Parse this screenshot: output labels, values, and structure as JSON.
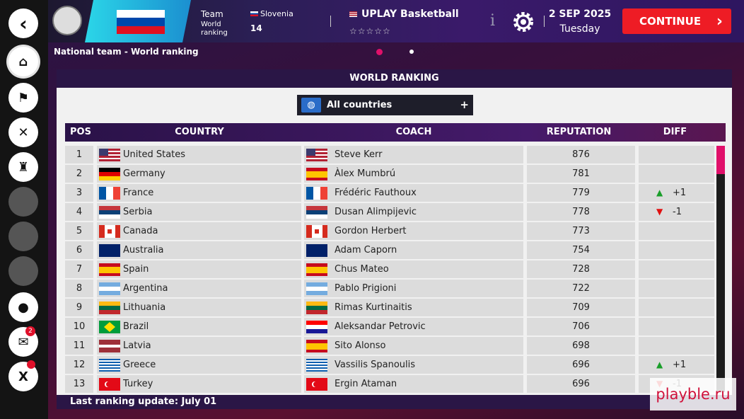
{
  "header": {
    "team_label": "Team",
    "world_ranking_label": "World ranking",
    "team_country": "Slovenia",
    "team_rank": 14,
    "game_title": "UPLAY Basketball",
    "date": "2 SEP 2025",
    "weekday": "Tuesday",
    "continue": "CONTINUE"
  },
  "breadcrumb": "National team - World ranking",
  "panel": {
    "title": "WORLD RANKING",
    "filter": "All countries"
  },
  "table": {
    "columns": [
      "POS",
      "COUNTRY",
      "COACH",
      "REPUTATION",
      "DIFF"
    ],
    "rows": [
      {
        "pos": 1,
        "country": "United States",
        "coach": "Steve Kerr",
        "reputation": 876
      },
      {
        "pos": 2,
        "country": "Germany",
        "coach": "Àlex Mumbrú",
        "reputation": 781
      },
      {
        "pos": 3,
        "country": "France",
        "coach": "Frédéric Fauthoux",
        "reputation": 779,
        "diff": "+1"
      },
      {
        "pos": 4,
        "country": "Serbia",
        "coach": "Dusan Alimpijevic",
        "reputation": 778,
        "diff": "-1"
      },
      {
        "pos": 5,
        "country": "Canada",
        "coach": "Gordon Herbert",
        "reputation": 773
      },
      {
        "pos": 6,
        "country": "Australia",
        "coach": "Adam Caporn",
        "reputation": 754
      },
      {
        "pos": 7,
        "country": "Spain",
        "coach": "Chus Mateo",
        "reputation": 728
      },
      {
        "pos": 8,
        "country": "Argentina",
        "coach": "Pablo Prigioni",
        "reputation": 722
      },
      {
        "pos": 9,
        "country": "Lithuania",
        "coach": "Rimas Kurtinaitis",
        "reputation": 709
      },
      {
        "pos": 10,
        "country": "Brazil",
        "coach": "Aleksandar Petrovic",
        "reputation": 706
      },
      {
        "pos": 11,
        "country": "Latvia",
        "coach": "Sito Alonso",
        "reputation": 698
      },
      {
        "pos": 12,
        "country": "Greece",
        "coach": "Vassilis Spanoulis",
        "reputation": 696,
        "diff": "+1"
      },
      {
        "pos": 13,
        "country": "Turkey",
        "coach": "Ergin Ataman",
        "reputation": 696,
        "diff": "-1"
      }
    ]
  },
  "footer": "Last ranking update: July 01",
  "notification_count": 2,
  "watermark": "playble.ru"
}
